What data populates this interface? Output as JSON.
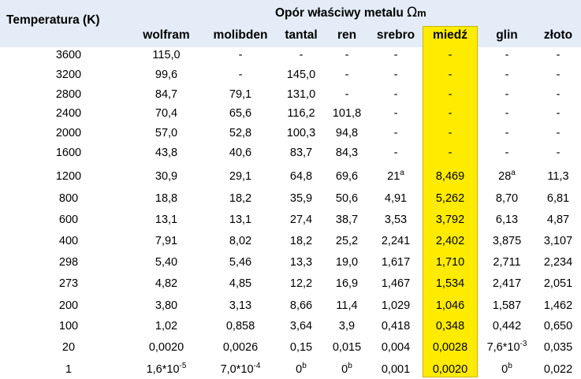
{
  "header": {
    "temperature_label": "Temperatura (K)",
    "group_label": "Opór właściwy metalu",
    "unit_symbol": "Ω",
    "unit_suffix": "m"
  },
  "columns": [
    "wolfram",
    "molibden",
    "tantal",
    "ren",
    "srebro",
    "miedź",
    "glin",
    "złoto"
  ],
  "highlight_column": "miedź",
  "colors": {
    "header_background": "#e4ecf7",
    "highlight": "#ffeb00"
  },
  "rows": [
    {
      "temp": "3600",
      "cells": [
        [
          "115,0"
        ],
        [
          "-"
        ],
        [
          "-"
        ],
        [
          "-"
        ],
        [
          "-"
        ],
        [
          "-"
        ],
        [
          "-"
        ],
        [
          "-"
        ]
      ]
    },
    {
      "temp": "3200",
      "cells": [
        [
          "99,6"
        ],
        [
          "-"
        ],
        [
          "145,0"
        ],
        [
          "-"
        ],
        [
          "-"
        ],
        [
          "-"
        ],
        [
          "-"
        ],
        [
          "-"
        ]
      ]
    },
    {
      "temp": "2800",
      "cells": [
        [
          "84,7"
        ],
        [
          "79,1"
        ],
        [
          "131,0"
        ],
        [
          "-"
        ],
        [
          "-"
        ],
        [
          "-"
        ],
        [
          "-"
        ],
        [
          "-"
        ]
      ]
    },
    {
      "temp": "2400",
      "cells": [
        [
          "70,4"
        ],
        [
          "65,6"
        ],
        [
          "116,2"
        ],
        [
          "101,8"
        ],
        [
          "-"
        ],
        [
          "-"
        ],
        [
          "-"
        ],
        [
          "-"
        ]
      ]
    },
    {
      "temp": "2000",
      "cells": [
        [
          "57,0"
        ],
        [
          "52,8"
        ],
        [
          "100,3"
        ],
        [
          "94,8"
        ],
        [
          "-"
        ],
        [
          "-"
        ],
        [
          "-"
        ],
        [
          "-"
        ]
      ]
    },
    {
      "temp": "1600",
      "cells": [
        [
          "43,8"
        ],
        [
          "40,6"
        ],
        [
          "83,7"
        ],
        [
          "84,3"
        ],
        [
          "-"
        ],
        [
          "-"
        ],
        [
          "-"
        ],
        [
          "-"
        ]
      ]
    },
    {
      "temp": "1200",
      "cells": [
        [
          "30,9"
        ],
        [
          "29,1"
        ],
        [
          "64,8"
        ],
        [
          "69,6"
        ],
        [
          "21",
          "a"
        ],
        [
          "8,469"
        ],
        [
          "28",
          "a"
        ],
        [
          "11,3"
        ]
      ]
    },
    {
      "temp": "800",
      "cells": [
        [
          "18,8"
        ],
        [
          "18,2"
        ],
        [
          "35,9"
        ],
        [
          "50,6"
        ],
        [
          "4,91"
        ],
        [
          "5,262"
        ],
        [
          "8,70"
        ],
        [
          "6,81"
        ]
      ]
    },
    {
      "temp": "600",
      "cells": [
        [
          "13,1"
        ],
        [
          "13,1"
        ],
        [
          "27,4"
        ],
        [
          "38,7"
        ],
        [
          "3,53"
        ],
        [
          "3,792"
        ],
        [
          "6,13"
        ],
        [
          "4,87"
        ]
      ]
    },
    {
      "temp": "400",
      "cells": [
        [
          "7,91"
        ],
        [
          "8,02"
        ],
        [
          "18,2"
        ],
        [
          "25,2"
        ],
        [
          "2,241"
        ],
        [
          "2,402"
        ],
        [
          "3,875"
        ],
        [
          "3,107"
        ]
      ]
    },
    {
      "temp": "298",
      "cells": [
        [
          "5,40"
        ],
        [
          "5,46"
        ],
        [
          "13,3"
        ],
        [
          "19,0"
        ],
        [
          "1,617"
        ],
        [
          "1,710"
        ],
        [
          "2,711"
        ],
        [
          "2,234"
        ]
      ]
    },
    {
      "temp": "273",
      "cells": [
        [
          "4,82"
        ],
        [
          "4,85"
        ],
        [
          "12,2"
        ],
        [
          "16,9"
        ],
        [
          "1,467"
        ],
        [
          "1,534"
        ],
        [
          "2,417"
        ],
        [
          "2,051"
        ]
      ]
    },
    {
      "temp": "200",
      "cells": [
        [
          "3,80"
        ],
        [
          "3,13"
        ],
        [
          "8,66"
        ],
        [
          "11,4"
        ],
        [
          "1,029"
        ],
        [
          "1,046"
        ],
        [
          "1,587"
        ],
        [
          "1,462"
        ]
      ]
    },
    {
      "temp": "100",
      "cells": [
        [
          "1,02"
        ],
        [
          "0,858"
        ],
        [
          "3,64"
        ],
        [
          "3,9"
        ],
        [
          "0,418"
        ],
        [
          "0,348"
        ],
        [
          "0,442"
        ],
        [
          "0,650"
        ]
      ]
    },
    {
      "temp": "20",
      "cells": [
        [
          "0,0020"
        ],
        [
          "0,0026"
        ],
        [
          "0,15"
        ],
        [
          "0,015"
        ],
        [
          "0,004"
        ],
        [
          "0,0028"
        ],
        [
          "7,6*10",
          "-3"
        ],
        [
          "0,035"
        ]
      ]
    },
    {
      "temp": "1",
      "cells": [
        [
          "1,6*10",
          "-5"
        ],
        [
          "7,0*10",
          "-4"
        ],
        [
          "0",
          "b"
        ],
        [
          "0",
          "b"
        ],
        [
          "0,001"
        ],
        [
          "0,0020"
        ],
        [
          "0",
          "b"
        ],
        [
          "0,022"
        ]
      ]
    }
  ]
}
